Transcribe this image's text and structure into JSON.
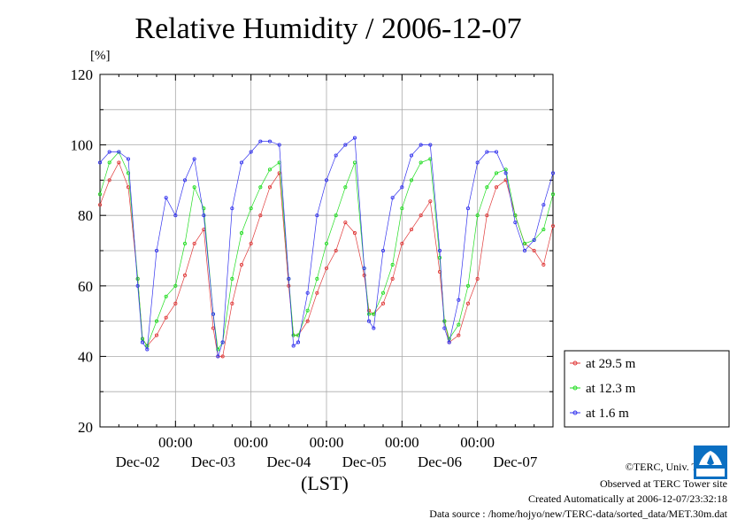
{
  "title": "Relative Humidity / 2006-12-07",
  "unit_label": "[%]",
  "x_axis_title": "(LST)",
  "credits": {
    "copyright": "©TERC, Univ. Tsukuba",
    "observed": "Observed at TERC Tower site",
    "created": "Created Automatically at 2006-12-07/23:32:18",
    "source": "Data source : /home/hojyo/new/TERC-data/sorted_data/MET.30m.dat"
  },
  "logo_text": "TERC",
  "chart_data": {
    "type": "line",
    "title": "Relative Humidity / 2006-12-07",
    "ylabel": "[%]",
    "xlabel": "(LST)",
    "ylim": [
      20,
      120
    ],
    "xlim": [
      0,
      6
    ],
    "y_ticks": [
      20,
      40,
      60,
      80,
      100,
      120
    ],
    "x_ticks": [
      1,
      2,
      3,
      4,
      5
    ],
    "x_tick_time_label": "00:00",
    "x_day_labels": [
      "Dec-02",
      "Dec-03",
      "Dec-04",
      "Dec-05",
      "Dec-06",
      "Dec-07"
    ],
    "grid": true,
    "legend_position": "lower-right, outside plot",
    "colors": {
      "at 29.5 m": "#e03a3a",
      "at 12.3 m": "#22dd22",
      "at 1.6 m": "#3333ee"
    },
    "x": [
      0,
      0.125,
      0.25,
      0.375,
      0.5,
      0.5625,
      0.625,
      0.75,
      0.875,
      1.0,
      1.125,
      1.25,
      1.375,
      1.5,
      1.5625,
      1.625,
      1.75,
      1.875,
      2.0,
      2.125,
      2.25,
      2.375,
      2.5,
      2.5625,
      2.625,
      2.75,
      2.875,
      3.0,
      3.125,
      3.25,
      3.375,
      3.5,
      3.5625,
      3.625,
      3.75,
      3.875,
      4.0,
      4.125,
      4.25,
      4.375,
      4.5,
      4.5625,
      4.625,
      4.75,
      4.875,
      5.0,
      5.125,
      5.25,
      5.375,
      5.5,
      5.625,
      5.75,
      5.875,
      6.0
    ],
    "series": [
      {
        "name": "at 29.5 m",
        "values": [
          83,
          90,
          95,
          88,
          62,
          45,
          43,
          46,
          51,
          55,
          63,
          72,
          76,
          48,
          40,
          40,
          55,
          66,
          72,
          80,
          88,
          92,
          60,
          46,
          46,
          50,
          58,
          65,
          70,
          78,
          75,
          63,
          53,
          52,
          55,
          62,
          72,
          76,
          80,
          84,
          64,
          50,
          44,
          46,
          55,
          62,
          80,
          88,
          90,
          80,
          72,
          70,
          66,
          77
        ]
      },
      {
        "name": "at 12.3 m",
        "values": [
          86,
          95,
          98,
          92,
          62,
          45,
          43,
          50,
          57,
          60,
          72,
          88,
          82,
          52,
          42,
          44,
          62,
          75,
          82,
          88,
          93,
          95,
          62,
          46,
          46,
          53,
          62,
          72,
          80,
          88,
          95,
          65,
          52,
          52,
          58,
          66,
          82,
          90,
          95,
          96,
          68,
          50,
          45,
          49,
          60,
          80,
          88,
          92,
          93,
          80,
          72,
          73,
          76,
          86
        ]
      },
      {
        "name": "at 1.6 m",
        "values": [
          95,
          98,
          98,
          96,
          60,
          44,
          42,
          70,
          85,
          80,
          90,
          96,
          80,
          52,
          40,
          44,
          82,
          95,
          98,
          101,
          101,
          100,
          62,
          43,
          44,
          58,
          80,
          90,
          97,
          100,
          102,
          65,
          50,
          48,
          70,
          85,
          88,
          97,
          100,
          100,
          70,
          48,
          44,
          56,
          82,
          95,
          98,
          98,
          92,
          78,
          70,
          73,
          83,
          92
        ]
      }
    ]
  }
}
